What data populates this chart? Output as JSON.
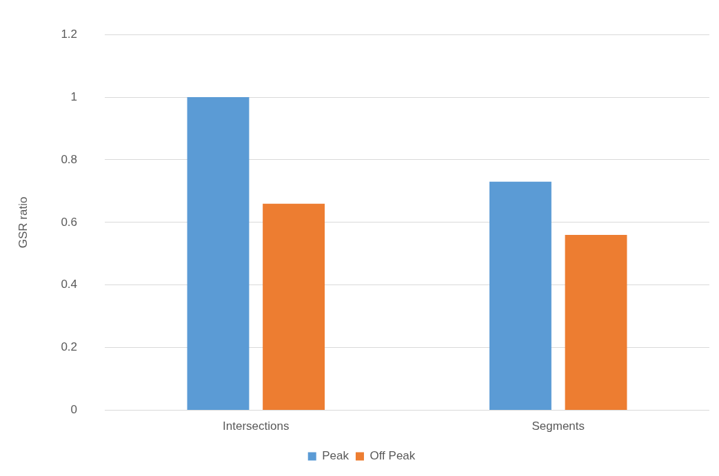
{
  "chart_data": {
    "type": "bar",
    "ylabel": "GSR ratio",
    "categories": [
      "Intersections",
      "Segments"
    ],
    "series": [
      {
        "name": "Peak",
        "color": "#5b9bd5",
        "values": [
          1.0,
          0.73
        ]
      },
      {
        "name": "Off Peak",
        "color": "#ed7d31",
        "values": [
          0.66,
          0.56
        ]
      }
    ],
    "ylim": [
      0,
      1.2
    ],
    "yticks": [
      0,
      0.2,
      0.4,
      0.6,
      0.8,
      1,
      1.2
    ],
    "grid": "y",
    "legend": "bottom"
  }
}
